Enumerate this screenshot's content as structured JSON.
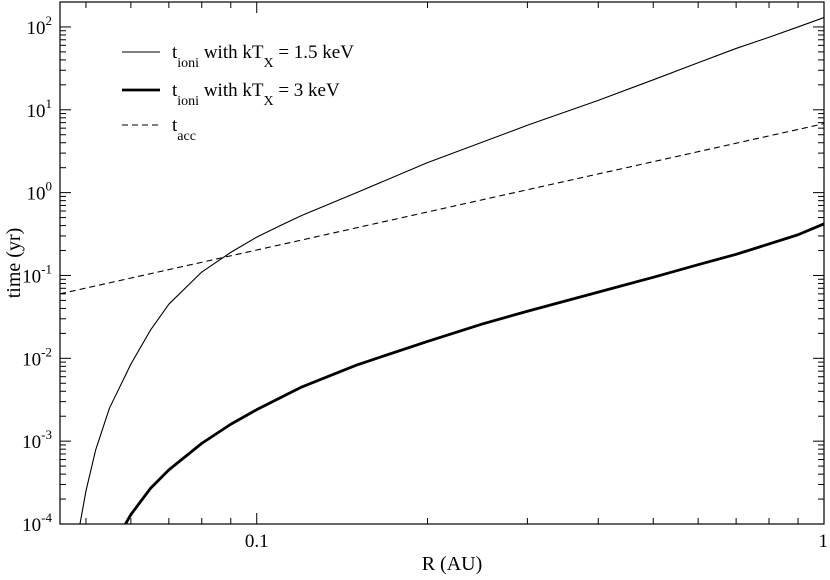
{
  "chart_data": {
    "type": "line",
    "xlabel": "R (AU)",
    "ylabel": "time (yr)",
    "xscale": "log",
    "yscale": "log",
    "xlim": [
      0.045,
      1
    ],
    "ylim": [
      0.0001,
      200
    ],
    "grid": false,
    "legend_position": "top-left",
    "x_ticks": [
      {
        "value": 0.1,
        "label": "0.1"
      },
      {
        "value": 1,
        "label": "1"
      }
    ],
    "y_ticks": [
      {
        "value": 0.0001,
        "base": "10",
        "exp": "-4"
      },
      {
        "value": 0.001,
        "base": "10",
        "exp": "-3"
      },
      {
        "value": 0.01,
        "base": "10",
        "exp": "-2"
      },
      {
        "value": 0.1,
        "base": "10",
        "exp": "-1"
      },
      {
        "value": 1,
        "base": "10",
        "exp": "0"
      },
      {
        "value": 10,
        "base": "10",
        "exp": "1"
      },
      {
        "value": 100,
        "base": "10",
        "exp": "2"
      }
    ],
    "series": [
      {
        "legend": [
          {
            "text": "t"
          },
          {
            "text": "ioni",
            "sub": true
          },
          {
            "text": " with  kT"
          },
          {
            "text": "X",
            "sub": true
          },
          {
            "text": " = 1.5 keV"
          }
        ],
        "style": "thin-solid",
        "x": [
          0.0488,
          0.05,
          0.052,
          0.055,
          0.06,
          0.065,
          0.07,
          0.08,
          0.09,
          0.1,
          0.11,
          0.12,
          0.15,
          0.2,
          0.3,
          0.4,
          0.5,
          0.6,
          0.7,
          0.8,
          0.9,
          1.0
        ],
        "y": [
          0.0001,
          0.00025,
          0.00078,
          0.0025,
          0.0085,
          0.022,
          0.045,
          0.11,
          0.19,
          0.29,
          0.4,
          0.53,
          1.0,
          2.3,
          6.5,
          13,
          23,
          37,
          55,
          75,
          100,
          130
        ]
      },
      {
        "legend": [
          {
            "text": "t"
          },
          {
            "text": "ioni",
            "sub": true
          },
          {
            "text": " with kT"
          },
          {
            "text": "X",
            "sub": true
          },
          {
            "text": " = 3 keV"
          }
        ],
        "style": "thick-solid",
        "x": [
          0.0587,
          0.06,
          0.065,
          0.07,
          0.08,
          0.09,
          0.1,
          0.12,
          0.15,
          0.2,
          0.25,
          0.3,
          0.4,
          0.5,
          0.6,
          0.7,
          0.8,
          0.9,
          1.0
        ],
        "y": [
          0.0001,
          0.00013,
          0.00027,
          0.00045,
          0.00094,
          0.0016,
          0.0024,
          0.0045,
          0.0083,
          0.016,
          0.026,
          0.037,
          0.063,
          0.095,
          0.135,
          0.18,
          0.24,
          0.31,
          0.42
        ]
      },
      {
        "legend": [
          {
            "text": "t"
          },
          {
            "text": "acc",
            "sub": true
          }
        ],
        "style": "dashed",
        "x": [
          0.045,
          1.0
        ],
        "y": [
          0.06,
          6.8
        ]
      }
    ]
  }
}
